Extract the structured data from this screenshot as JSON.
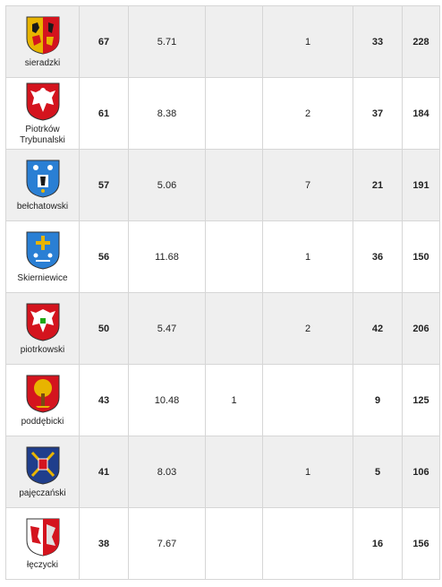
{
  "rows": [
    {
      "name": "sieradzki",
      "rank": "67",
      "value": "5.71",
      "c3": "",
      "c4": "1",
      "green": "33",
      "pink": "228",
      "crest": "sieradzki-crest"
    },
    {
      "name": "Piotrków Trybunalski",
      "rank": "61",
      "value": "8.38",
      "c3": "",
      "c4": "2",
      "green": "37",
      "pink": "184",
      "crest": "piotrkow-crest"
    },
    {
      "name": "bełchatowski",
      "rank": "57",
      "value": "5.06",
      "c3": "",
      "c4": "7",
      "green": "21",
      "pink": "191",
      "crest": "belchatowski-crest"
    },
    {
      "name": "Skierniewice",
      "rank": "56",
      "value": "11.68",
      "c3": "",
      "c4": "1",
      "green": "36",
      "pink": "150",
      "crest": "skierniewice-crest"
    },
    {
      "name": "piotrkowski",
      "rank": "50",
      "value": "5.47",
      "c3": "",
      "c4": "2",
      "green": "42",
      "pink": "206",
      "crest": "piotrkowski-crest"
    },
    {
      "name": "poddębicki",
      "rank": "43",
      "value": "10.48",
      "c3": "1",
      "c4": "",
      "green": "9",
      "pink": "125",
      "crest": "poddebicki-crest"
    },
    {
      "name": "pajęczański",
      "rank": "41",
      "value": "8.03",
      "c3": "",
      "c4": "1",
      "green": "5",
      "pink": "106",
      "crest": "pajeczanski-crest"
    },
    {
      "name": "łęczycki",
      "rank": "38",
      "value": "7.67",
      "c3": "",
      "c4": "",
      "green": "16",
      "pink": "156",
      "crest": "leczycki-crest"
    }
  ],
  "colors": {
    "red": "#e8202a",
    "green": "#1fa814",
    "pink": "#c0158a"
  }
}
